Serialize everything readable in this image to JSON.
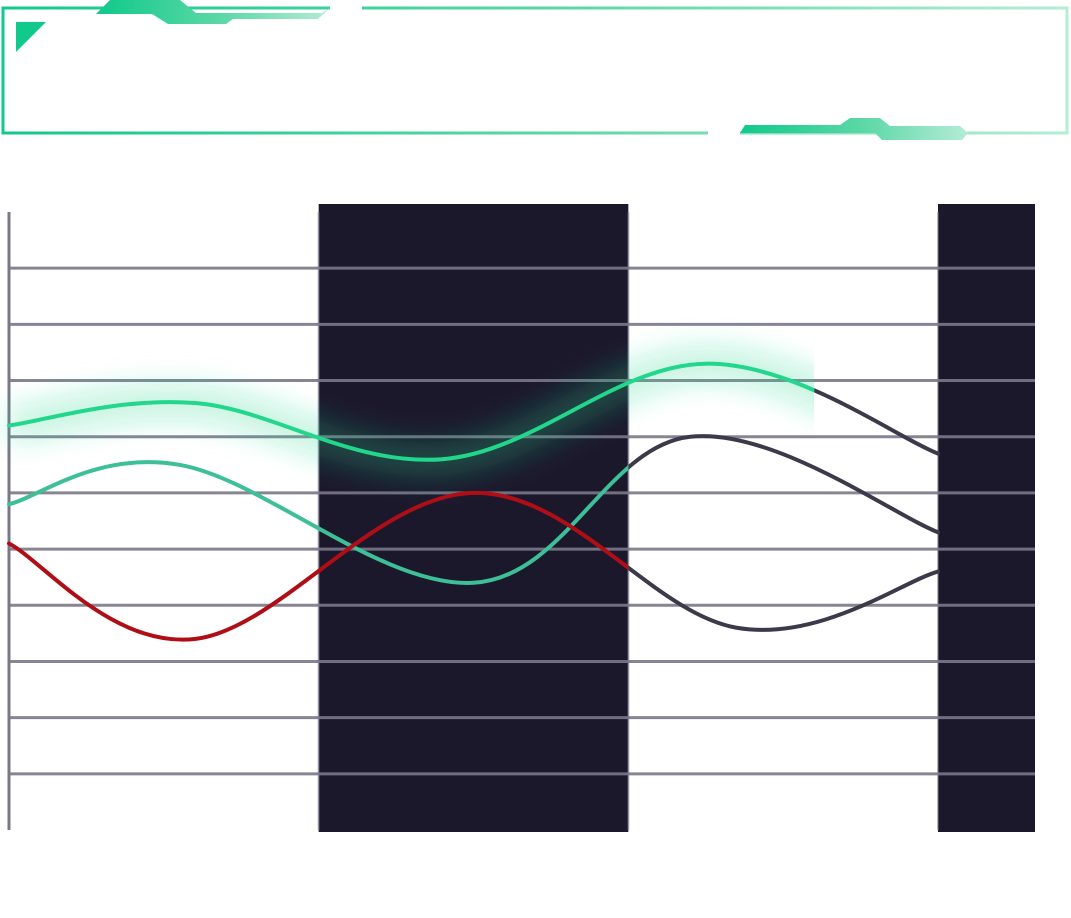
{
  "header": {
    "title": ""
  },
  "colors": {
    "background": "#ffffff",
    "frame_gradient": [
      "#10c98a",
      "#5ed8a8",
      "#b4ecd6"
    ],
    "grid": "#7a7888",
    "shaded_band": "#1c182c",
    "series_green": "#22d68b",
    "series_teal": "#3dbf98",
    "series_red": "#b00e16",
    "series_muted": "#3a3a4a"
  },
  "chart_data": {
    "type": "line",
    "title": "",
    "xlabel": "",
    "ylabel": "",
    "x": [
      0,
      1,
      2,
      3,
      4,
      5
    ],
    "xlim": [
      0,
      5
    ],
    "ylim": [
      0,
      11
    ],
    "grid": true,
    "legend": "none",
    "shaded_ranges": [
      [
        1,
        2
      ],
      [
        3,
        3.3
      ]
    ],
    "series": [
      {
        "style": "green",
        "values": [
          7.2,
          7.6,
          6.6,
          8.3,
          6.7
        ],
        "x": [
          0,
          0.6,
          1.4,
          2.25,
          3
        ],
        "highlight_until": 2.6,
        "glow": true
      },
      {
        "style": "teal",
        "values": [
          5.8,
          6.5,
          4.4,
          7.0,
          5.3
        ],
        "x": [
          0,
          0.55,
          1.5,
          2.2,
          3
        ],
        "highlight_until": 2.0
      },
      {
        "style": "red",
        "values": [
          5.1,
          3.4,
          6.0,
          3.6,
          4.6
        ],
        "x": [
          0,
          0.6,
          1.5,
          2.35,
          3
        ],
        "highlight_until": 2.0
      }
    ]
  }
}
